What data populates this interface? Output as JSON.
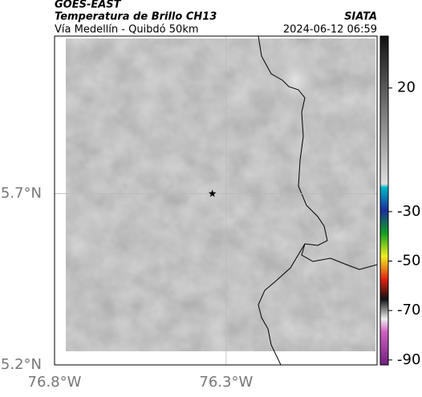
{
  "header": {
    "title": "GOES-EAST",
    "subtitle": "Temperatura de Brillo CH13",
    "route": "Vía Medellín - Quibdó 50km",
    "source": "SIATA",
    "timestamp": "2024-06-12 06:59"
  },
  "map": {
    "lon_lim": [
      -76.8,
      -75.86
    ],
    "lat_lim": [
      5.2,
      6.16
    ],
    "lon_ticks": [
      {
        "value": -76.8,
        "label": "76.8°W"
      },
      {
        "value": -76.3,
        "label": "76.3°W"
      }
    ],
    "lat_ticks": [
      {
        "value": 5.7,
        "label": "5.7°N"
      },
      {
        "value": 5.2,
        "label": "5.2°N"
      }
    ],
    "grid": true,
    "marker": {
      "lon": -76.34,
      "lat": 5.7
    }
  },
  "colorbar": {
    "lim": [
      -92,
      41
    ],
    "ticks": [
      20,
      -30,
      -50,
      -70,
      -90
    ]
  }
}
